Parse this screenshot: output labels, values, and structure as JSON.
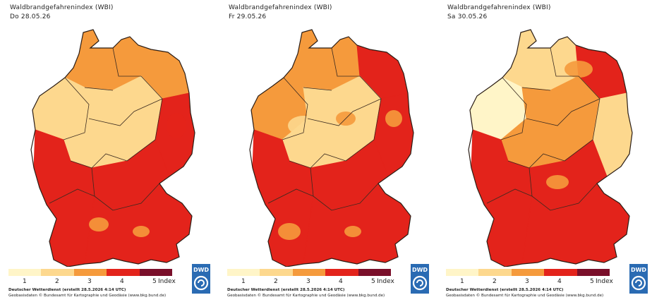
{
  "map_data": {
    "title": "Waldbrandgefahrenindex (WBI)",
    "panels": [
      {
        "date": "Do 28.05.26",
        "levels": {
          "north": 3,
          "northwest": 2,
          "central": 2,
          "east": 4,
          "northeast": 3,
          "south": 4,
          "southwest": 4,
          "southeast": 4
        }
      },
      {
        "date": "Fr 29.05.26",
        "levels": {
          "north": 3,
          "northwest": 3,
          "central": 2,
          "east": 4,
          "northeast": 4,
          "south": 4,
          "southwest": 4,
          "southeast": 4
        }
      },
      {
        "date": "Sa 30.05.26",
        "levels": {
          "north": 2,
          "northwest": 1,
          "central": 3,
          "east": 2,
          "northeast": 4,
          "south": 4,
          "southwest": 4,
          "southeast": 4
        }
      }
    ],
    "legend": {
      "ticks": [
        "1",
        "2",
        "3",
        "4",
        "5"
      ],
      "unit_label": "Index",
      "colors": [
        "#fff5c8",
        "#fdd88e",
        "#f59a3c",
        "#e3231b",
        "#7a0f2a"
      ]
    },
    "credit_line1": "Deutscher Wetterdienst (erstellt 28.5.2026 4:14 UTC)",
    "credit_line2": "Geobasisdaten © Bundesamt für Kartographie und Geodäsie (www.bkg.bund.de)",
    "logo_text": "DWD"
  }
}
